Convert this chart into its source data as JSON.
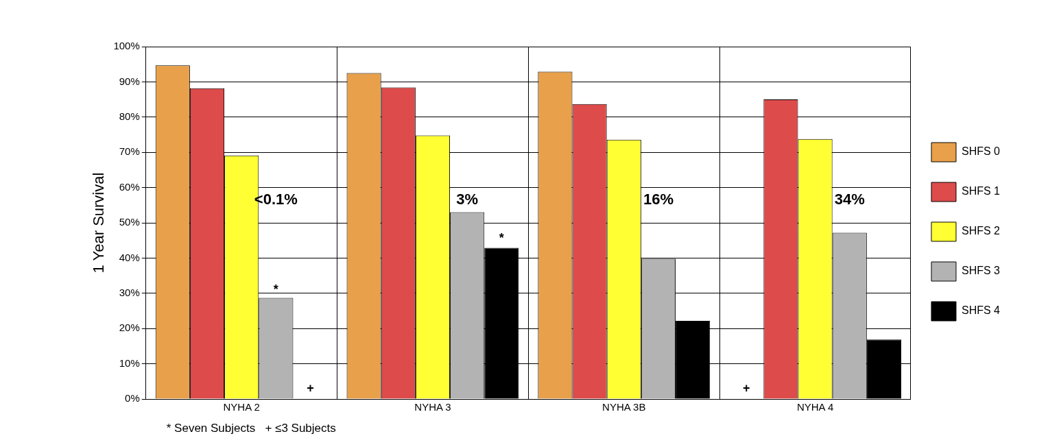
{
  "chart_data": {
    "type": "bar",
    "ylabel": "1 Year Survival",
    "categories": [
      "NYHA 2",
      "NYHA 3",
      "NYHA 3B",
      "NYHA 4"
    ],
    "series": [
      {
        "name": "SHFS 0",
        "color": "#e8a04a",
        "values": [
          94.7,
          92.5,
          92.9,
          null
        ]
      },
      {
        "name": "SHFS 1",
        "color": "#dd4b4b",
        "values": [
          88.2,
          88.4,
          83.7,
          85
        ]
      },
      {
        "name": "SHFS 2",
        "color": "#ffff33",
        "values": [
          69.1,
          74.8,
          73.6,
          73.8
        ]
      },
      {
        "name": "SHFS 3",
        "color": "#b3b3b3",
        "values": [
          28.7,
          53,
          39.8,
          47.2
        ]
      },
      {
        "name": "SHFS 4",
        "color": "#000000",
        "values": [
          null,
          42.9,
          22.2,
          16.9
        ]
      }
    ],
    "ylim": [
      0,
      100
    ],
    "yticks": [
      {
        "value": 0,
        "label": "0%"
      },
      {
        "value": 10,
        "label": "10%"
      },
      {
        "value": 20,
        "label": "20%"
      },
      {
        "value": 30,
        "label": "30%"
      },
      {
        "value": 40,
        "label": "40%"
      },
      {
        "value": 50,
        "label": "50%"
      },
      {
        "value": 60,
        "label": "60%"
      },
      {
        "value": 70,
        "label": "70%"
      },
      {
        "value": 80,
        "label": "80%"
      },
      {
        "value": 90,
        "label": "90%"
      },
      {
        "value": 100,
        "label": "100%"
      }
    ],
    "grid": true,
    "legend": "right",
    "annotations": [
      "<0.1%",
      "3%",
      "16%",
      "34%",
      "*",
      "*",
      "+",
      "+",
      "* Seven Subjects   + ≤3 Subjects"
    ]
  }
}
